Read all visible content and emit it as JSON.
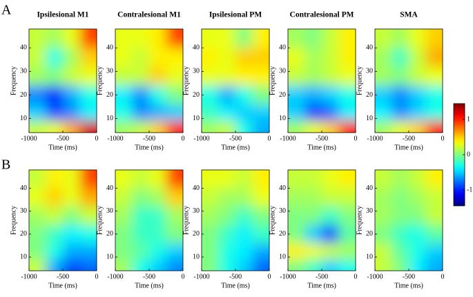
{
  "panel_labels": [
    "A",
    "B"
  ],
  "colorbar": {
    "clim": [
      -1.45,
      1.45
    ],
    "ticks": [
      -1,
      0,
      1
    ],
    "colormap": "jet"
  },
  "chart_data": [
    {
      "type": "heatmap",
      "title": "Ipsilesional M1",
      "xlabel": "Time (ms)",
      "ylabel": "Frequency",
      "x": [
        -875,
        -625,
        -375,
        -125
      ],
      "y": [
        44,
        36,
        28,
        20,
        12,
        6
      ],
      "xlim": [
        -1000,
        0
      ],
      "ylim": [
        4,
        48
      ],
      "xticks": [
        -1000,
        -500,
        0
      ],
      "yticks": [
        10,
        20,
        30,
        40
      ],
      "z": [
        [
          0.2,
          0.1,
          0.3,
          0.9
        ],
        [
          0.2,
          -0.3,
          0.1,
          0.5
        ],
        [
          0.1,
          0,
          0.2,
          0.3
        ],
        [
          -0.7,
          -1.0,
          -0.6,
          -0.3
        ],
        [
          -0.5,
          -0.9,
          -0.7,
          -0.4
        ],
        [
          0.2,
          0.3,
          0.6,
          1.2
        ]
      ]
    },
    {
      "type": "heatmap",
      "title": "Contralesional M1",
      "xlabel": "Time (ms)",
      "ylabel": "Frequency",
      "x": [
        -875,
        -625,
        -375,
        -125
      ],
      "y": [
        44,
        36,
        28,
        20,
        12,
        6
      ],
      "xlim": [
        -1000,
        0
      ],
      "ylim": [
        4,
        48
      ],
      "xticks": [
        -1000,
        -500,
        0
      ],
      "yticks": [
        10,
        20,
        30,
        40
      ],
      "z": [
        [
          0.3,
          0.3,
          0.4,
          0.9
        ],
        [
          0.3,
          0.2,
          0.4,
          0.4
        ],
        [
          0.2,
          0.2,
          0.5,
          0.3
        ],
        [
          -0.4,
          -0.7,
          -0.3,
          0
        ],
        [
          -0.3,
          -0.7,
          -0.6,
          -0.5
        ],
        [
          0.1,
          0.2,
          0.5,
          1.0
        ]
      ]
    },
    {
      "type": "heatmap",
      "title": "Ipsilesional PM",
      "xlabel": "Time (ms)",
      "ylabel": "Frequency",
      "x": [
        -875,
        -625,
        -375,
        -125
      ],
      "y": [
        44,
        36,
        28,
        20,
        12,
        6
      ],
      "xlim": [
        -1000,
        0
      ],
      "ylim": [
        4,
        48
      ],
      "xticks": [
        -1000,
        -500,
        0
      ],
      "yticks": [
        10,
        20,
        30,
        40
      ],
      "z": [
        [
          0.3,
          0.3,
          0,
          0.4
        ],
        [
          0.4,
          0.3,
          0.5,
          0.5
        ],
        [
          0.3,
          0.3,
          0.4,
          0.4
        ],
        [
          -0.3,
          -0.6,
          -0.3,
          0
        ],
        [
          -0.2,
          -0.4,
          -0.5,
          -0.5
        ],
        [
          0.1,
          0.2,
          -0.3,
          -0.6
        ]
      ]
    },
    {
      "type": "heatmap",
      "title": "Contralesional PM",
      "xlabel": "Time (ms)",
      "ylabel": "Frequency",
      "x": [
        -875,
        -625,
        -375,
        -125
      ],
      "y": [
        44,
        36,
        28,
        20,
        12,
        6
      ],
      "xlim": [
        -1000,
        0
      ],
      "ylim": [
        4,
        48
      ],
      "xticks": [
        -1000,
        -500,
        0
      ],
      "yticks": [
        10,
        20,
        30,
        40
      ],
      "z": [
        [
          0.1,
          0,
          0.2,
          0.4
        ],
        [
          0.3,
          0.1,
          0.2,
          0.4
        ],
        [
          0.2,
          0.1,
          0.2,
          0.3
        ],
        [
          -0.5,
          -0.6,
          -0.5,
          -0.3
        ],
        [
          -0.5,
          -1.0,
          -0.8,
          -0.4
        ],
        [
          0.1,
          0.3,
          0.5,
          1.0
        ]
      ]
    },
    {
      "type": "heatmap",
      "title": "SMA",
      "xlabel": "Time (ms)",
      "ylabel": "Frequency",
      "x": [
        -875,
        -625,
        -375,
        -125
      ],
      "y": [
        44,
        36,
        28,
        20,
        12,
        6
      ],
      "xlim": [
        -1000,
        0
      ],
      "ylim": [
        4,
        48
      ],
      "xticks": [
        -1000,
        -500,
        0
      ],
      "yticks": [
        10,
        20,
        30,
        40
      ],
      "z": [
        [
          0.2,
          0.1,
          0.3,
          0.5
        ],
        [
          0.1,
          -0.2,
          0.2,
          0.6
        ],
        [
          0.1,
          0,
          0.2,
          0.3
        ],
        [
          -0.5,
          -0.7,
          -0.5,
          -0.3
        ],
        [
          -0.4,
          -0.7,
          -0.5,
          -0.3
        ],
        [
          0.1,
          0.3,
          0.5,
          1.0
        ]
      ]
    },
    {
      "type": "heatmap",
      "xlabel": "Time (ms)",
      "ylabel": "Frequency",
      "x": [
        -875,
        -625,
        -375,
        -125
      ],
      "y": [
        44,
        36,
        28,
        20,
        12,
        6
      ],
      "xlim": [
        -1000,
        0
      ],
      "ylim": [
        4,
        48
      ],
      "xticks": [
        -1000,
        -500,
        0
      ],
      "yticks": [
        10,
        20,
        30,
        40
      ],
      "z": [
        [
          0.2,
          0.4,
          0.3,
          0.9
        ],
        [
          0.3,
          0.5,
          0.3,
          0.6
        ],
        [
          0.1,
          0.2,
          0,
          0.2
        ],
        [
          0,
          -0.2,
          -0.4,
          -0.3
        ],
        [
          0,
          -0.3,
          -0.6,
          -0.6
        ],
        [
          0.2,
          -0.6,
          -0.9,
          -0.8
        ]
      ]
    },
    {
      "type": "heatmap",
      "xlabel": "Time (ms)",
      "ylabel": "Frequency",
      "x": [
        -875,
        -625,
        -375,
        -125
      ],
      "y": [
        44,
        36,
        28,
        20,
        12,
        6
      ],
      "xlim": [
        -1000,
        0
      ],
      "ylim": [
        4,
        48
      ],
      "xticks": [
        -1000,
        -500,
        0
      ],
      "yticks": [
        10,
        20,
        30,
        40
      ],
      "z": [
        [
          0.3,
          0.2,
          0.3,
          0.9
        ],
        [
          0.2,
          0,
          0.1,
          0.5
        ],
        [
          0.1,
          -0.2,
          -0.2,
          0.1
        ],
        [
          0,
          -0.2,
          -0.2,
          0
        ],
        [
          0,
          -0.1,
          -0.3,
          -0.5
        ],
        [
          0.1,
          -0.3,
          -0.5,
          -0.7
        ]
      ]
    },
    {
      "type": "heatmap",
      "xlabel": "Time (ms)",
      "ylabel": "Frequency",
      "x": [
        -875,
        -625,
        -375,
        -125
      ],
      "y": [
        44,
        36,
        28,
        20,
        12,
        6
      ],
      "xlim": [
        -1000,
        0
      ],
      "ylim": [
        4,
        48
      ],
      "xticks": [
        -1000,
        -500,
        0
      ],
      "yticks": [
        10,
        20,
        30,
        40
      ],
      "z": [
        [
          0.3,
          0.3,
          0.2,
          0.4
        ],
        [
          0.2,
          0.1,
          0.1,
          0.3
        ],
        [
          0.1,
          0,
          -0.2,
          0
        ],
        [
          0,
          -0.2,
          -0.4,
          -0.2
        ],
        [
          0,
          -0.3,
          -0.4,
          -0.6
        ],
        [
          0,
          -0.3,
          -0.5,
          -0.8
        ]
      ]
    },
    {
      "type": "heatmap",
      "xlabel": "Time (ms)",
      "ylabel": "Frequency",
      "x": [
        -875,
        -625,
        -375,
        -125
      ],
      "y": [
        44,
        36,
        28,
        20,
        12,
        6
      ],
      "xlim": [
        -1000,
        0
      ],
      "ylim": [
        4,
        48
      ],
      "xticks": [
        -1000,
        -500,
        0
      ],
      "yticks": [
        10,
        20,
        30,
        40
      ],
      "z": [
        [
          0.2,
          0.2,
          0.3,
          0.4
        ],
        [
          0.1,
          0.1,
          0.2,
          0.2
        ],
        [
          0,
          0,
          -0.2,
          0
        ],
        [
          0,
          -0.5,
          -0.9,
          -0.1
        ],
        [
          0.4,
          0.3,
          0.2,
          0.1
        ],
        [
          0,
          -0.2,
          -0.5,
          -0.3
        ]
      ]
    },
    {
      "type": "heatmap",
      "xlabel": "Time (ms)",
      "ylabel": "Frequency",
      "x": [
        -875,
        -625,
        -375,
        -125
      ],
      "y": [
        44,
        36,
        28,
        20,
        12,
        6
      ],
      "xlim": [
        -1000,
        0
      ],
      "ylim": [
        4,
        48
      ],
      "xticks": [
        -1000,
        -500,
        0
      ],
      "yticks": [
        10,
        20,
        30,
        40
      ],
      "z": [
        [
          0.2,
          0.1,
          0.2,
          0.4
        ],
        [
          0.1,
          0,
          0.1,
          0.2
        ],
        [
          0.1,
          0,
          0,
          0.2
        ],
        [
          0,
          -0.2,
          -0.3,
          -0.1
        ],
        [
          0.2,
          -0.1,
          -0.3,
          -0.5
        ],
        [
          0.2,
          0,
          -0.4,
          -0.6
        ]
      ]
    }
  ]
}
